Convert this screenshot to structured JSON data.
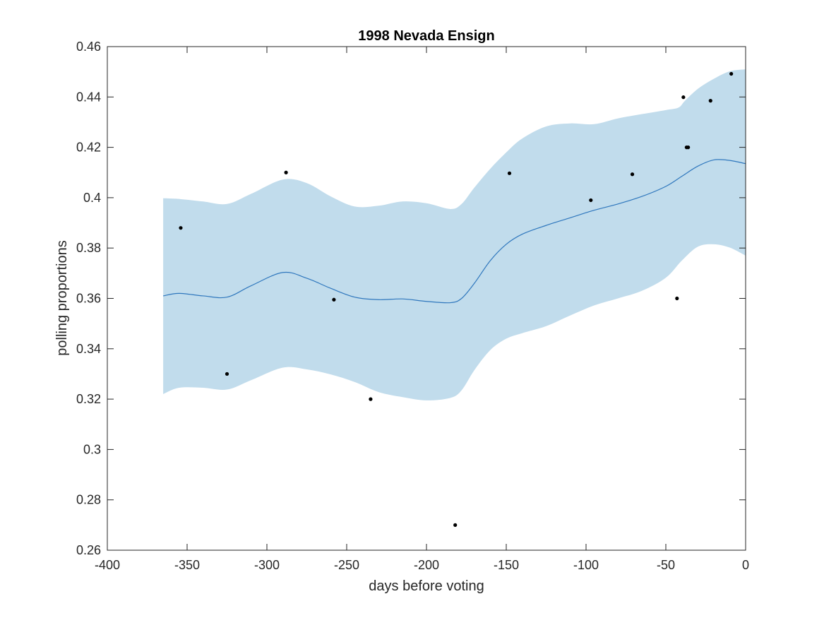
{
  "chart_data": {
    "type": "line",
    "title": "1998 Nevada Ensign",
    "xlabel": "days before voting",
    "ylabel": "polling proportions",
    "xlim": [
      -400,
      0
    ],
    "ylim": [
      0.26,
      0.46
    ],
    "xticks": [
      -400,
      -350,
      -300,
      -250,
      -200,
      -150,
      -100,
      -50,
      0
    ],
    "xtick_labels": [
      "-400",
      "-350",
      "-300",
      "-250",
      "-200",
      "-150",
      "-100",
      "-50",
      "0"
    ],
    "yticks": [
      0.26,
      0.28,
      0.3,
      0.32,
      0.34,
      0.36,
      0.38,
      0.4,
      0.42,
      0.44,
      0.46
    ],
    "ytick_labels": [
      "0.26",
      "0.28",
      "0.3",
      "0.32",
      "0.34",
      "0.36",
      "0.38",
      "0.4",
      "0.42",
      "0.44",
      "0.46"
    ],
    "grid": false,
    "legend": "none",
    "colors": {
      "band": "#c1dcec",
      "line": "#2f77bd",
      "points": "#000000",
      "axis": "#262626"
    },
    "trend": {
      "x": [
        -365,
        -355,
        -340,
        -325,
        -310,
        -290,
        -275,
        -260,
        -245,
        -230,
        -215,
        -200,
        -185,
        -178,
        -170,
        -160,
        -150,
        -140,
        -125,
        -110,
        -95,
        -80,
        -65,
        -50,
        -40,
        -30,
        -20,
        -10,
        0
      ],
      "y": [
        0.361,
        0.362,
        0.361,
        0.3605,
        0.365,
        0.3703,
        0.368,
        0.364,
        0.3605,
        0.3595,
        0.3598,
        0.3588,
        0.3583,
        0.36,
        0.366,
        0.375,
        0.3815,
        0.3855,
        0.389,
        0.392,
        0.395,
        0.3975,
        0.4005,
        0.4045,
        0.4085,
        0.4125,
        0.415,
        0.4148,
        0.4135
      ]
    },
    "band_upper": {
      "x": [
        -365,
        -355,
        -340,
        -325,
        -310,
        -290,
        -275,
        -260,
        -245,
        -230,
        -215,
        -200,
        -185,
        -178,
        -170,
        -160,
        -150,
        -140,
        -125,
        -110,
        -95,
        -80,
        -65,
        -50,
        -42,
        -38,
        -30,
        -20,
        -10,
        0
      ],
      "y": [
        0.3998,
        0.3995,
        0.3985,
        0.3975,
        0.4015,
        0.4072,
        0.4058,
        0.4005,
        0.3965,
        0.3968,
        0.3985,
        0.3978,
        0.3955,
        0.3975,
        0.404,
        0.4115,
        0.418,
        0.4235,
        0.4283,
        0.4295,
        0.4292,
        0.4315,
        0.4332,
        0.4348,
        0.4358,
        0.4385,
        0.4432,
        0.4472,
        0.4502,
        0.451
      ]
    },
    "band_lower": {
      "x": [
        -365,
        -355,
        -340,
        -325,
        -310,
        -290,
        -275,
        -260,
        -245,
        -230,
        -215,
        -200,
        -185,
        -178,
        -170,
        -160,
        -150,
        -140,
        -125,
        -110,
        -95,
        -80,
        -65,
        -50,
        -40,
        -30,
        -20,
        -10,
        0
      ],
      "y": [
        0.322,
        0.3245,
        0.3245,
        0.3238,
        0.3275,
        0.3325,
        0.3318,
        0.3298,
        0.3268,
        0.3228,
        0.3208,
        0.3195,
        0.3205,
        0.3235,
        0.3315,
        0.3395,
        0.344,
        0.3462,
        0.349,
        0.3532,
        0.3572,
        0.36,
        0.363,
        0.3682,
        0.375,
        0.3805,
        0.3815,
        0.3802,
        0.377
      ]
    },
    "points": {
      "x": [
        -354,
        -325,
        -288,
        -258,
        -235,
        -182,
        -148,
        -97,
        -71,
        -43,
        -39,
        -37,
        -36,
        -22,
        -9
      ],
      "y": [
        0.388,
        0.33,
        0.41,
        0.3595,
        0.32,
        0.27,
        0.4097,
        0.399,
        0.4093,
        0.36,
        0.4399,
        0.42,
        0.42,
        0.4385,
        0.4492
      ]
    }
  }
}
